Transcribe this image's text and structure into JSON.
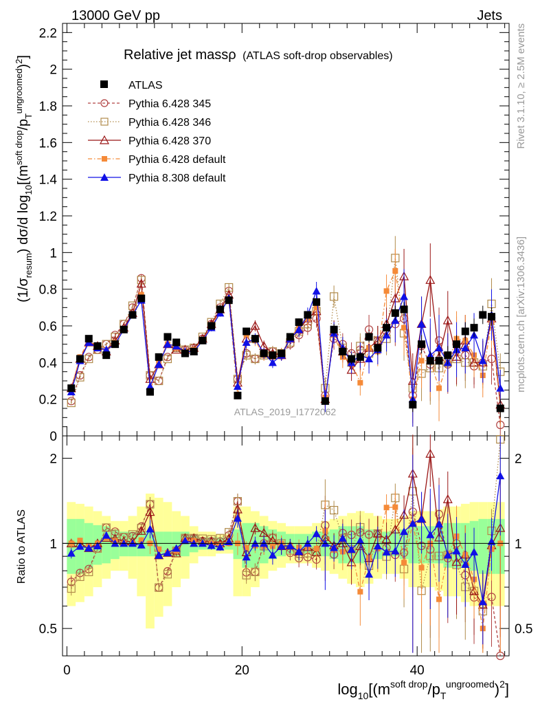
{
  "header": {
    "left": "13000 GeV pp",
    "right": "Jets"
  },
  "title": {
    "main": "Relative jet massρ",
    "sub": "(ATLAS soft-drop observables)"
  },
  "side_labels": {
    "rivet": "Rivet 3.1.10, ≥ 2.5M events",
    "mcplots": "mcplots.cern.ch [arXiv:1306.3436]"
  },
  "analysis_id": "ATLAS_2019_I1772062",
  "axes": {
    "ylabel_main": "(1/σresum) dσ/d log10[(m^soft drop/pT^ungroomed)²]",
    "ylabel_ratio": "Ratio to ATLAS",
    "xlabel": "log10[(m^soft drop/pT^ungroomed)²]",
    "main_yticks": [
      "0",
      "0.2",
      "0.4",
      "0.6",
      "0.8",
      "1",
      "1.2",
      "1.4",
      "1.6",
      "1.8",
      "2",
      "2.2"
    ],
    "ratio_yticks": [
      "0.5",
      "1",
      "2"
    ],
    "xticks": [
      "0",
      "20",
      "40"
    ]
  },
  "colors": {
    "atlas": "#000000",
    "p345": "#b04040",
    "p346": "#b08a4a",
    "p370": "#991414",
    "p6def": "#f58a38",
    "p8def": "#1010e6",
    "band_yellow": "#ffff99",
    "band_green": "#99ff99"
  },
  "chart_data": {
    "type": "scatter",
    "x_range": [
      -0.5,
      50.5
    ],
    "main_ylim": [
      0,
      2.25
    ],
    "ratio_ylim": [
      0.4,
      2.4
    ],
    "ratio_log": true,
    "legend_position": "top-left",
    "x": [
      0.5,
      1.5,
      2.5,
      3.5,
      4.5,
      5.5,
      6.5,
      7.5,
      8.5,
      9.5,
      10.5,
      11.5,
      12.5,
      13.5,
      14.5,
      15.5,
      16.5,
      17.5,
      18.5,
      19.5,
      20.5,
      21.5,
      22.5,
      23.5,
      24.5,
      25.5,
      26.5,
      27.5,
      28.5,
      29.5,
      30.5,
      31.5,
      32.5,
      33.5,
      34.5,
      35.5,
      36.5,
      37.5,
      38.5,
      39.5,
      40.5,
      41.5,
      42.5,
      43.5,
      44.5,
      45.5,
      46.5,
      47.5,
      48.5,
      49.5
    ],
    "atlas": [
      0.26,
      0.42,
      0.53,
      0.49,
      0.44,
      0.5,
      0.58,
      0.66,
      0.75,
      0.24,
      0.43,
      0.54,
      0.51,
      0.45,
      0.46,
      0.52,
      0.6,
      0.69,
      0.74,
      0.22,
      0.57,
      0.53,
      0.45,
      0.44,
      0.45,
      0.54,
      0.62,
      0.66,
      0.73,
      0.19,
      0.58,
      0.46,
      0.42,
      0.43,
      0.54,
      0.48,
      0.59,
      0.67,
      0.69,
      0.17,
      0.5,
      0.41,
      0.41,
      0.44,
      0.5,
      0.57,
      0.59,
      0.66,
      0.65,
      0.15
    ],
    "series": [
      {
        "name": "Pythia 6.428 345",
        "values": [
          0.19,
          0.33,
          0.43,
          0.47,
          0.5,
          0.55,
          0.61,
          0.7,
          0.86,
          0.33,
          0.3,
          0.43,
          0.48,
          0.47,
          0.48,
          0.53,
          0.61,
          0.7,
          0.79,
          0.31,
          0.45,
          0.42,
          0.45,
          0.46,
          0.44,
          0.5,
          0.55,
          0.59,
          0.64,
          0.22,
          0.53,
          0.5,
          0.45,
          0.47,
          0.58,
          0.52,
          0.57,
          0.61,
          0.64,
          0.22,
          0.49,
          0.39,
          0.52,
          0.39,
          0.5,
          0.44,
          0.38,
          0.4,
          0.42,
          0.06
        ]
      },
      {
        "name": "Pythia 6.428 346",
        "values": [
          0.18,
          0.32,
          0.42,
          0.47,
          0.5,
          0.54,
          0.61,
          0.71,
          0.85,
          0.33,
          0.3,
          0.42,
          0.48,
          0.47,
          0.48,
          0.54,
          0.62,
          0.72,
          0.81,
          0.31,
          0.44,
          0.42,
          0.44,
          0.46,
          0.45,
          0.51,
          0.57,
          0.61,
          0.68,
          0.26,
          0.76,
          0.48,
          0.4,
          0.49,
          0.45,
          0.52,
          0.53,
          0.97,
          0.56,
          0.26,
          0.34,
          0.37,
          0.37,
          0.4,
          0.42,
          0.4,
          0.4,
          0.38,
          0.72,
          0.35
        ]
      },
      {
        "name": "Pythia 6.428 370",
        "values": [
          0.26,
          0.42,
          0.51,
          0.49,
          0.46,
          0.52,
          0.59,
          0.67,
          0.83,
          0.31,
          0.39,
          0.5,
          0.47,
          0.47,
          0.48,
          0.53,
          0.61,
          0.69,
          0.77,
          0.29,
          0.53,
          0.6,
          0.49,
          0.45,
          0.44,
          0.53,
          0.58,
          0.64,
          0.68,
          0.2,
          0.57,
          0.46,
          0.36,
          0.42,
          0.48,
          0.52,
          0.61,
          0.75,
          0.87,
          0.3,
          0.61,
          0.85,
          0.43,
          0.63,
          0.43,
          0.52,
          0.4,
          0.4,
          0.64,
          0.17
        ]
      },
      {
        "name": "Pythia 6.428 default",
        "values": [
          0.26,
          0.43,
          0.52,
          0.49,
          0.46,
          0.51,
          0.58,
          0.66,
          0.77,
          0.24,
          0.41,
          0.5,
          0.48,
          0.46,
          0.47,
          0.52,
          0.6,
          0.68,
          0.74,
          0.22,
          0.55,
          0.52,
          0.44,
          0.43,
          0.45,
          0.53,
          0.6,
          0.64,
          0.7,
          0.21,
          0.55,
          0.43,
          0.4,
          0.29,
          0.48,
          0.46,
          0.79,
          0.9,
          0.59,
          0.2,
          0.41,
          0.41,
          0.26,
          0.4,
          0.53,
          0.52,
          0.44,
          0.33,
          0.62,
          0.15
        ]
      },
      {
        "name": "Pythia 8.308 default",
        "values": [
          0.24,
          0.41,
          0.51,
          0.48,
          0.47,
          0.5,
          0.58,
          0.66,
          0.74,
          0.27,
          0.39,
          0.5,
          0.49,
          0.46,
          0.46,
          0.52,
          0.59,
          0.67,
          0.75,
          0.27,
          0.51,
          0.53,
          0.45,
          0.4,
          0.44,
          0.53,
          0.58,
          0.66,
          0.79,
          0.19,
          0.56,
          0.48,
          0.4,
          0.44,
          0.42,
          0.47,
          0.55,
          0.63,
          0.76,
          0.2,
          0.61,
          0.44,
          0.48,
          0.4,
          0.47,
          0.48,
          0.55,
          0.41,
          0.66,
          0.26
        ]
      }
    ],
    "band_green": [
      0.22,
      0.22,
      0.18,
      0.16,
      0.15,
      0.12,
      0.1,
      0.1,
      0.1,
      0.1,
      0.1,
      0.1,
      0.1,
      0.1,
      0.07,
      0.05,
      0.05,
      0.05,
      0.05,
      0.12,
      0.18,
      0.18,
      0.15,
      0.12,
      0.1,
      0.08,
      0.08,
      0.08,
      0.1,
      0.1,
      0.12,
      0.15,
      0.15,
      0.15,
      0.12,
      0.12,
      0.1,
      0.1,
      0.12,
      0.15,
      0.15,
      0.15,
      0.15,
      0.18,
      0.18,
      0.18,
      0.2,
      0.22,
      0.22,
      0.22
    ],
    "band_yellow": [
      0.4,
      0.38,
      0.35,
      0.3,
      0.25,
      0.2,
      0.2,
      0.25,
      0.35,
      0.5,
      0.45,
      0.4,
      0.3,
      0.25,
      0.15,
      0.1,
      0.1,
      0.08,
      0.08,
      0.35,
      0.35,
      0.3,
      0.25,
      0.2,
      0.18,
      0.15,
      0.15,
      0.15,
      0.18,
      0.2,
      0.22,
      0.25,
      0.28,
      0.3,
      0.28,
      0.25,
      0.22,
      0.22,
      0.25,
      0.3,
      0.3,
      0.3,
      0.32,
      0.35,
      0.35,
      0.38,
      0.4,
      0.4,
      0.4,
      0.4
    ],
    "atlas_err": [
      0.01,
      0.01,
      0.01,
      0.01,
      0.01,
      0.01,
      0.01,
      0.01,
      0.01,
      0.01,
      0.01,
      0.01,
      0.01,
      0.01,
      0.01,
      0.01,
      0.01,
      0.01,
      0.01,
      0.01,
      0.02,
      0.02,
      0.02,
      0.02,
      0.02,
      0.02,
      0.02,
      0.02,
      0.02,
      0.02,
      0.03,
      0.03,
      0.03,
      0.03,
      0.03,
      0.04,
      0.04,
      0.04,
      0.04,
      0.04,
      0.05,
      0.05,
      0.05,
      0.05,
      0.05,
      0.05,
      0.05,
      0.05,
      0.05,
      0.05
    ],
    "mc_err": [
      0.01,
      0.01,
      0.01,
      0.01,
      0.01,
      0.01,
      0.01,
      0.01,
      0.02,
      0.02,
      0.01,
      0.01,
      0.01,
      0.01,
      0.01,
      0.01,
      0.02,
      0.02,
      0.02,
      0.02,
      0.03,
      0.03,
      0.03,
      0.03,
      0.03,
      0.03,
      0.04,
      0.04,
      0.05,
      0.06,
      0.06,
      0.06,
      0.06,
      0.07,
      0.08,
      0.08,
      0.09,
      0.12,
      0.15,
      0.15,
      0.15,
      0.2,
      0.18,
      0.16,
      0.15,
      0.14,
      0.12,
      0.12,
      0.14,
      0.1
    ]
  }
}
